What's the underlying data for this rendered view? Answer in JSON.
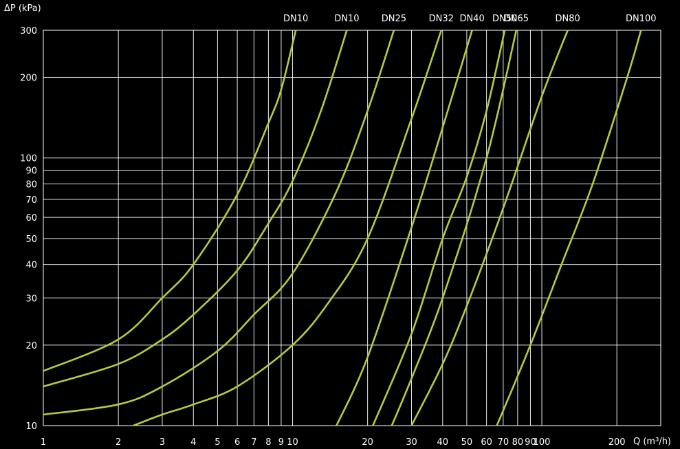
{
  "chart_data": {
    "type": "line",
    "xscale": "log",
    "yscale": "log",
    "xlim": [
      1,
      300
    ],
    "ylim": [
      10,
      300
    ],
    "ylabel": "ΔP (kPa)",
    "xlabel": "Q (m³/h)",
    "x_ticks": [
      1,
      2,
      3,
      4,
      5,
      6,
      7,
      8,
      9,
      10,
      20,
      30,
      40,
      50,
      60,
      70,
      80,
      90,
      100,
      200
    ],
    "x_tick_labels": [
      "1",
      "2",
      "3",
      "4",
      "5",
      "6",
      "7",
      "8",
      "9",
      "10",
      "20",
      "30",
      "40",
      "50",
      "60",
      "70",
      "80",
      "90",
      "100",
      "200"
    ],
    "y_ticks": [
      10,
      20,
      30,
      40,
      50,
      60,
      70,
      80,
      90,
      100,
      200,
      300
    ],
    "y_tick_labels": [
      "10",
      "20",
      "30",
      "40",
      "50",
      "60",
      "70",
      "80",
      "90",
      "100",
      "200",
      "300"
    ],
    "grid": true,
    "line_color": "#b5cc3c",
    "series": [
      {
        "name": "DN10",
        "x": [
          1,
          2,
          3,
          4,
          6,
          8,
          9,
          10.3
        ],
        "y": [
          16,
          21,
          30,
          40,
          73,
          135,
          180,
          300
        ]
      },
      {
        "name": "DN10",
        "x": [
          1,
          2,
          3,
          4,
          6,
          8,
          10,
          13,
          16.5
        ],
        "y": [
          14,
          17,
          21,
          26,
          38,
          57,
          82,
          150,
          300
        ]
      },
      {
        "name": "DN25",
        "x": [
          1,
          2,
          3,
          5,
          7,
          10,
          15,
          20,
          25.5
        ],
        "y": [
          11,
          12,
          14,
          19,
          26,
          37,
          75,
          150,
          300
        ]
      },
      {
        "name": "DN32",
        "x": [
          2.3,
          3,
          4,
          6,
          10,
          14,
          20,
          30,
          39.5
        ],
        "y": [
          10,
          11,
          12,
          14,
          20,
          29,
          50,
          140,
          300
        ]
      },
      {
        "name": "DN40",
        "x": [
          15,
          20,
          30,
          40,
          52.5
        ],
        "y": [
          10,
          18,
          55,
          130,
          300
        ]
      },
      {
        "name": "DN50",
        "x": [
          21,
          30,
          40,
          50,
          60,
          71
        ],
        "y": [
          10,
          22,
          50,
          85,
          150,
          300
        ]
      },
      {
        "name": "DN65",
        "x": [
          25,
          30,
          40,
          60,
          79
        ],
        "y": [
          10,
          15,
          30,
          100,
          300
        ]
      },
      {
        "name": "DN80",
        "x": [
          30,
          40,
          50,
          70,
          100,
          127
        ],
        "y": [
          10,
          17,
          28,
          65,
          170,
          300
        ]
      },
      {
        "name": "DN100",
        "x": [
          66,
          90,
          120,
          160,
          220,
          250
        ],
        "y": [
          10,
          20,
          40,
          80,
          200,
          300
        ]
      }
    ]
  }
}
